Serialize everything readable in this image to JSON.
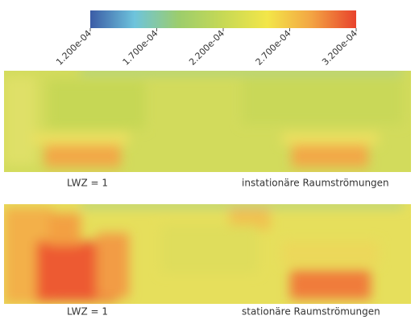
{
  "colorbar": {
    "lim": [
      0.00012,
      0.00032
    ],
    "ticks": [
      {
        "value": 0.00012,
        "label": "1.200e-04"
      },
      {
        "value": 0.00017,
        "label": "1.700e-04"
      },
      {
        "value": 0.00022,
        "label": "2.200e-04"
      },
      {
        "value": 0.00027,
        "label": "2.700e-04"
      },
      {
        "value": 0.00032,
        "label": "3.200e-04"
      }
    ],
    "colors": [
      "#3b5ca6",
      "#6ec4dc",
      "#9ccd6c",
      "#c7d955",
      "#f3e649",
      "#f3a443",
      "#e8422c"
    ]
  },
  "panels": [
    {
      "label": "LWZ = 1",
      "caption": "instationäre Raumströmungen"
    },
    {
      "label": "LWZ = 1",
      "caption": "stationäre Raumströmungen"
    }
  ]
}
